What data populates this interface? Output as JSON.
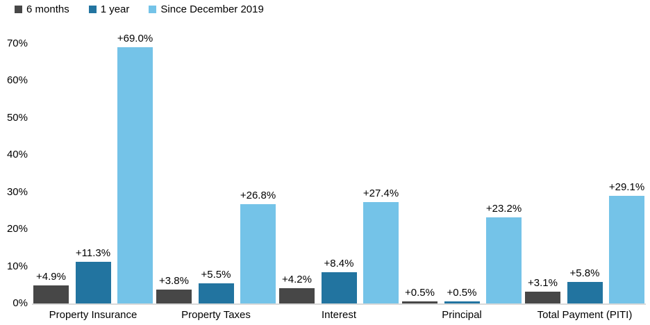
{
  "legend": [
    {
      "label": "6 months",
      "color": "#474747"
    },
    {
      "label": "1 year",
      "color": "#2274a0"
    },
    {
      "label": "Since December 2019",
      "color": "#74c3e8"
    }
  ],
  "axis": {
    "baseline_color": "#d9d9d9"
  },
  "chart_data": {
    "type": "bar",
    "title": "",
    "categories": [
      "Property Insurance",
      "Property Taxes",
      "Interest",
      "Principal",
      "Total Payment (PITI)"
    ],
    "series": [
      {
        "name": "6 months",
        "color": "#474747",
        "values": [
          4.9,
          3.8,
          4.2,
          0.5,
          3.1
        ],
        "labels": [
          "+4.9%",
          "+3.8%",
          "+4.2%",
          "+0.5%",
          "+3.1%"
        ]
      },
      {
        "name": "1 year",
        "color": "#2274a0",
        "values": [
          11.3,
          5.5,
          8.4,
          0.5,
          5.8
        ],
        "labels": [
          "+11.3%",
          "+5.5%",
          "+8.4%",
          "+0.5%",
          "+5.8%"
        ]
      },
      {
        "name": "Since December 2019",
        "color": "#74c3e8",
        "values": [
          69.0,
          26.8,
          27.4,
          23.2,
          29.1
        ],
        "labels": [
          "+69.0%",
          "+26.8%",
          "+27.4%",
          "+23.2%",
          "+29.1%"
        ]
      }
    ],
    "y_ticks": [
      {
        "label": "0%",
        "value": 0
      },
      {
        "label": "10%",
        "value": 10
      },
      {
        "label": "20%",
        "value": 20
      },
      {
        "label": "30%",
        "value": 30
      },
      {
        "label": "40%",
        "value": 40
      },
      {
        "label": "50%",
        "value": 50
      },
      {
        "label": "60%",
        "value": 60
      },
      {
        "label": "70%",
        "value": 70
      }
    ],
    "ylim": [
      0,
      70
    ],
    "grid": false,
    "legend_position": "top-left"
  }
}
